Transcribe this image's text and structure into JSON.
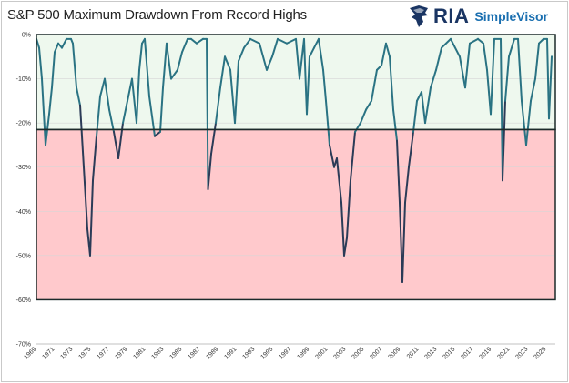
{
  "chart_data": {
    "type": "line",
    "title": "S&P 500 Maximum Drawdown From Record Highs",
    "xlabel": "",
    "ylabel": "",
    "ylim": [
      -70,
      0
    ],
    "y_ticks": [
      "0%",
      "-10%",
      "-20%",
      "-30%",
      "-40%",
      "-50%",
      "-60%",
      "-70%"
    ],
    "x_ticks": [
      "1969",
      "1971",
      "1973",
      "1975",
      "1977",
      "1979",
      "1981",
      "1983",
      "1985",
      "1987",
      "1989",
      "1991",
      "1993",
      "1995",
      "1997",
      "1999",
      "2001",
      "2003",
      "2005",
      "2007",
      "2009",
      "2011",
      "2013",
      "2015",
      "2017",
      "2019",
      "2021",
      "2023",
      "2025"
    ],
    "x_range": [
      1969,
      2026
    ],
    "bands": [
      {
        "from": 0,
        "to": -21.5,
        "color": "#eef8ee"
      },
      {
        "from": -21.5,
        "to": -60,
        "color": "#ffc9cc"
      }
    ],
    "colors": {
      "line_upper": "#2a7383",
      "line_lower": "#2b3b57",
      "threshold": "#1c2a2a"
    },
    "series": [
      {
        "x": [
          1969.0,
          1969.3,
          1969.6,
          1970.0,
          1970.4,
          1970.7,
          1971.0,
          1971.4,
          1971.8,
          1972.3,
          1972.8,
          1973.0,
          1973.4,
          1973.8,
          1974.2,
          1974.6,
          1974.9,
          1975.2,
          1975.6,
          1976.0,
          1976.5,
          1977.0,
          1977.5,
          1978.0,
          1978.5,
          1979.0,
          1979.5,
          1980.0,
          1980.3,
          1980.6,
          1980.9,
          1981.4,
          1982.0,
          1982.6,
          1982.9,
          1983.3,
          1983.8,
          1984.5,
          1985.0,
          1985.6,
          1986.0,
          1986.6,
          1987.3,
          1987.7,
          1987.85,
          1988.2,
          1988.7,
          1989.2,
          1989.7,
          1990.3,
          1990.8,
          1991.2,
          1991.8,
          1992.5,
          1993.5,
          1994.3,
          1994.9,
          1995.5,
          1996.5,
          1997.5,
          1997.9,
          1998.4,
          1998.7,
          1999.0,
          1999.5,
          2000.0,
          2000.5,
          2000.8,
          2001.2,
          2001.7,
          2002.0,
          2002.5,
          2002.8,
          2003.1,
          2003.5,
          2004.0,
          2004.6,
          2005.2,
          2005.8,
          2006.4,
          2006.9,
          2007.4,
          2007.8,
          2008.2,
          2008.6,
          2008.9,
          2009.2,
          2009.5,
          2009.9,
          2010.4,
          2010.8,
          2011.3,
          2011.7,
          2012.3,
          2012.9,
          2013.5,
          2014.5,
          2015.5,
          2016.1,
          2016.6,
          2017.5,
          2018.1,
          2018.5,
          2018.9,
          2019.3,
          2020.0,
          2020.2,
          2020.5,
          2020.9,
          2021.5,
          2021.9,
          2022.3,
          2022.8,
          2023.3,
          2023.8,
          2024.2,
          2024.7,
          2025.1,
          2025.3,
          2025.6
        ],
        "values": [
          -1,
          -3,
          -10,
          -25,
          -18,
          -12,
          -4,
          -2,
          -3,
          -1,
          -1,
          -2,
          -12,
          -16,
          -30,
          -44,
          -50,
          -33,
          -23,
          -14,
          -10,
          -17,
          -22,
          -28,
          -20,
          -15,
          -10,
          -20,
          -8,
          -2,
          -1,
          -14,
          -23,
          -22,
          -12,
          -2,
          -10,
          -8,
          -4,
          -1,
          -1,
          -2,
          -1,
          -1,
          -35,
          -27,
          -20,
          -12,
          -5,
          -8,
          -20,
          -6,
          -3,
          -1,
          -2,
          -8,
          -5,
          -1,
          -2,
          -1,
          -10,
          -1,
          -18,
          -5,
          -3,
          -1,
          -8,
          -15,
          -25,
          -30,
          -28,
          -38,
          -50,
          -46,
          -33,
          -22,
          -20,
          -17,
          -15,
          -8,
          -7,
          -2,
          -5,
          -17,
          -24,
          -38,
          -56,
          -38,
          -30,
          -22,
          -15,
          -13,
          -20,
          -12,
          -8,
          -3,
          -1,
          -5,
          -12,
          -2,
          -1,
          -2,
          -8,
          -18,
          -1,
          -1,
          -33,
          -15,
          -5,
          -1,
          -1,
          -15,
          -25,
          -15,
          -10,
          -2,
          -1,
          -1,
          -19,
          -5
        ]
      }
    ]
  }
}
